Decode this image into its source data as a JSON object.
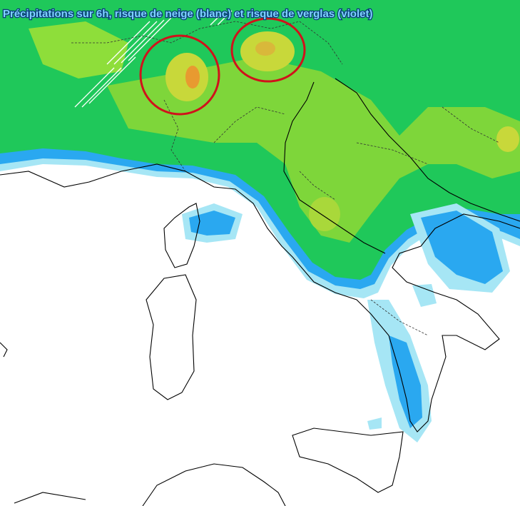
{
  "header": {
    "title": "Précipitations sur 6h, risque de neige (blanc) et risque de verglas (violet)"
  }
}
